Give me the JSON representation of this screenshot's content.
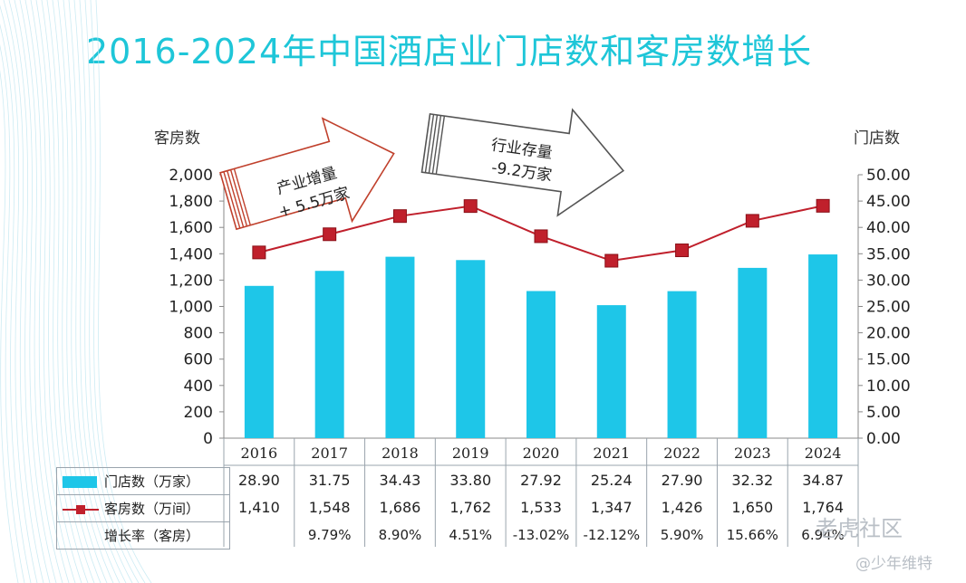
{
  "title": "2016-2024年中国酒店业门店数和客房数增长",
  "chart_data": {
    "type": "bar+line",
    "categories": [
      "2016",
      "2017",
      "2018",
      "2019",
      "2020",
      "2021",
      "2022",
      "2023",
      "2024"
    ],
    "series": [
      {
        "name": "门店数（万家）",
        "type": "bar",
        "axis": "right",
        "color": "#1ec6e8",
        "values": [
          28.9,
          31.75,
          34.43,
          33.8,
          27.92,
          25.24,
          27.9,
          32.32,
          34.87
        ],
        "labels": [
          "28.90",
          "31.75",
          "34.43",
          "33.80",
          "27.92",
          "25.24",
          "27.90",
          "32.32",
          "34.87"
        ]
      },
      {
        "name": "客房数（万间）",
        "type": "line",
        "axis": "left",
        "color": "#c0202c",
        "values": [
          1410,
          1548,
          1686,
          1762,
          1533,
          1347,
          1426,
          1650,
          1764
        ],
        "labels": [
          "1,410",
          "1,548",
          "1,686",
          "1,762",
          "1,533",
          "1,347",
          "1,426",
          "1,650",
          "1,764"
        ]
      }
    ],
    "growth_row": {
      "label": "增长率（客房）",
      "values": [
        "",
        "9.79%",
        "8.90%",
        "4.51%",
        "-13.02%",
        "-12.12%",
        "5.90%",
        "15.66%",
        "6.94%"
      ]
    },
    "left_axis": {
      "title": "客房数",
      "min": 0,
      "max": 2000,
      "step": 200,
      "ticks": [
        "0",
        "200",
        "400",
        "600",
        "800",
        "1,000",
        "1,200",
        "1,400",
        "1,600",
        "1,800",
        "2,000"
      ]
    },
    "right_axis": {
      "title": "门店数",
      "min": 0,
      "max": 50,
      "step": 5,
      "ticks": [
        "0.00",
        "5.00",
        "10.00",
        "15.00",
        "20.00",
        "25.00",
        "30.00",
        "35.00",
        "40.00",
        "45.00",
        "50.00"
      ]
    },
    "annotations": [
      {
        "text_lines": [
          "产业增量",
          "+ 5.5万家"
        ],
        "color": "#c0402c"
      },
      {
        "text_lines": [
          "行业存量",
          "-9.2万家"
        ],
        "color": "#555555"
      }
    ]
  },
  "watermarks": [
    "老虎社区",
    "@少年维特"
  ]
}
